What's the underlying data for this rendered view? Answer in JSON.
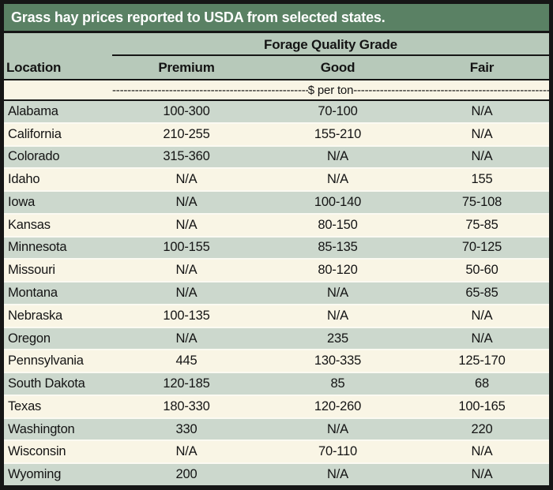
{
  "title": "Grass hay prices reported to USDA from selected states.",
  "table": {
    "group_header": "Forage Quality Grade",
    "columns": [
      "Location",
      "Premium",
      "Good",
      "Fair"
    ],
    "unit": {
      "label": "$ per ton",
      "dashes": "--------------------------------------------------------------------------------"
    },
    "rows": [
      {
        "location": "Alabama",
        "premium": "100-300",
        "good": "70-100",
        "fair": "N/A"
      },
      {
        "location": "California",
        "premium": "210-255",
        "good": "155-210",
        "fair": "N/A"
      },
      {
        "location": "Colorado",
        "premium": "315-360",
        "good": "N/A",
        "fair": "N/A"
      },
      {
        "location": "Idaho",
        "premium": "N/A",
        "good": "N/A",
        "fair": "155"
      },
      {
        "location": "Iowa",
        "premium": "N/A",
        "good": "100-140",
        "fair": "75-108"
      },
      {
        "location": "Kansas",
        "premium": "N/A",
        "good": "80-150",
        "fair": "75-85"
      },
      {
        "location": "Minnesota",
        "premium": "100-155",
        "good": "85-135",
        "fair": "70-125"
      },
      {
        "location": "Missouri",
        "premium": "N/A",
        "good": "80-120",
        "fair": "50-60"
      },
      {
        "location": "Montana",
        "premium": "N/A",
        "good": "N/A",
        "fair": "65-85"
      },
      {
        "location": "Nebraska",
        "premium": "100-135",
        "good": "N/A",
        "fair": "N/A"
      },
      {
        "location": "Oregon",
        "premium": "N/A",
        "good": "235",
        "fair": "N/A"
      },
      {
        "location": "Pennsylvania",
        "premium": "445",
        "good": "130-335",
        "fair": "125-170"
      },
      {
        "location": "South Dakota",
        "premium": "120-185",
        "good": "85",
        "fair": "68"
      },
      {
        "location": "Texas",
        "premium": "180-330",
        "good": "120-260",
        "fair": "100-165"
      },
      {
        "location": "Washington",
        "premium": "330",
        "good": "N/A",
        "fair": "220"
      },
      {
        "location": "Wisconsin",
        "premium": "N/A",
        "good": "70-110",
        "fair": "N/A"
      },
      {
        "location": "Wyoming",
        "premium": "200",
        "good": "N/A",
        "fair": "N/A"
      }
    ]
  },
  "colors": {
    "title_bar_green": "#5a8164",
    "header_green": "#b7c9ba",
    "row_stripe_green": "#ccd8cd",
    "row_stripe_cream": "#f9f5e5",
    "border_black": "#161616",
    "title_text": "#ffffff"
  }
}
